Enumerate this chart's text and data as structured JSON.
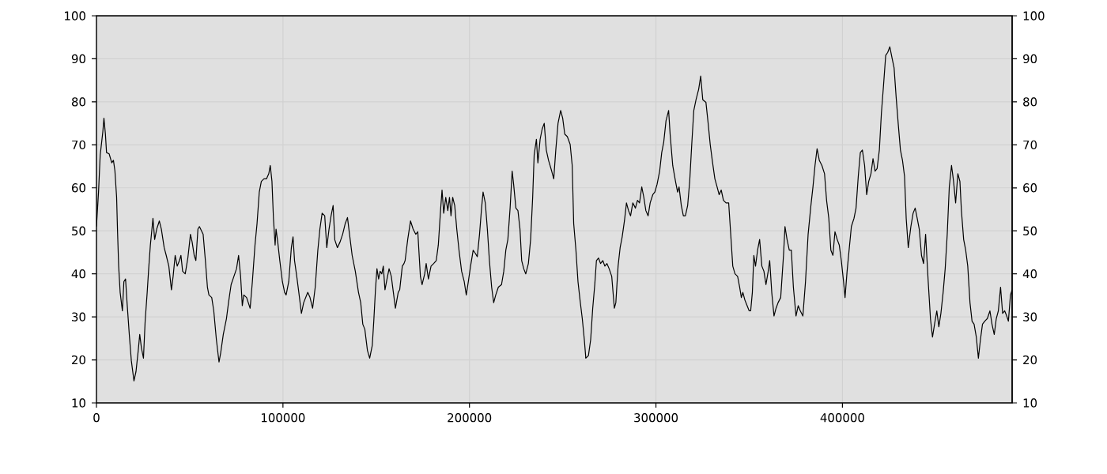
{
  "chart_data": {
    "type": "line",
    "x": [
      0,
      1100,
      2000,
      3400,
      4000,
      4800,
      5400,
      6800,
      8200,
      9100,
      9900,
      10800,
      11300,
      11900,
      12700,
      13900,
      14700,
      15600,
      16400,
      17600,
      18700,
      20100,
      21200,
      22400,
      23200,
      24100,
      25200,
      26100,
      27200,
      28000,
      28900,
      30300,
      31200,
      32300,
      33700,
      34800,
      36300,
      37400,
      38800,
      40200,
      41100,
      42200,
      43300,
      44500,
      45300,
      46200,
      47600,
      49000,
      50400,
      51300,
      52400,
      53300,
      54400,
      55200,
      57200,
      58400,
      59500,
      60300,
      61800,
      62900,
      64300,
      65700,
      66600,
      68000,
      69700,
      70800,
      72200,
      73700,
      75100,
      76200,
      77300,
      78200,
      79000,
      80500,
      82400,
      83600,
      85000,
      86100,
      87300,
      88400,
      89800,
      91200,
      92400,
      93200,
      94100,
      94900,
      95800,
      96300,
      97200,
      98300,
      99700,
      100900,
      101700,
      103100,
      104500,
      105400,
      106200,
      107400,
      108500,
      109900,
      111100,
      112200,
      113300,
      114500,
      115900,
      117300,
      118700,
      119800,
      121000,
      122400,
      123500,
      124700,
      125800,
      126900,
      127800,
      129200,
      130600,
      132000,
      133400,
      134600,
      135700,
      137100,
      138800,
      140500,
      141700,
      142800,
      143900,
      145300,
      146500,
      147900,
      148700,
      149600,
      150400,
      151300,
      152100,
      153000,
      153800,
      154700,
      155800,
      156900,
      158100,
      159200,
      160300,
      161800,
      162600,
      164000,
      164900,
      165500,
      166900,
      168400,
      169800,
      171200,
      172300,
      173700,
      174600,
      176000,
      176800,
      178000,
      179400,
      180800,
      182200,
      183300,
      184500,
      185300,
      186200,
      187300,
      188400,
      189300,
      190100,
      191000,
      192100,
      193200,
      194400,
      195800,
      197200,
      198300,
      199400,
      200600,
      202000,
      203100,
      204200,
      205400,
      206500,
      207300,
      208500,
      209600,
      210700,
      211900,
      213000,
      214100,
      215500,
      217200,
      218400,
      219500,
      220600,
      221800,
      222900,
      223700,
      224900,
      226000,
      227100,
      228000,
      229100,
      230200,
      231600,
      232800,
      233900,
      234700,
      235900,
      236700,
      237900,
      239000,
      240100,
      241200,
      242400,
      244100,
      245200,
      246300,
      247500,
      248900,
      250000,
      251100,
      252500,
      254000,
      255100,
      255900,
      257100,
      258200,
      259300,
      260500,
      261600,
      262400,
      263800,
      265000,
      266100,
      267200,
      268100,
      269200,
      270300,
      271500,
      272600,
      273700,
      274900,
      276300,
      277700,
      278500,
      279700,
      280800,
      281900,
      283100,
      284200,
      285300,
      286400,
      287600,
      289000,
      290100,
      291200,
      292400,
      293500,
      294600,
      295800,
      296900,
      298300,
      299400,
      300600,
      302000,
      303100,
      304200,
      305400,
      306800,
      307600,
      309000,
      310500,
      311600,
      312400,
      313600,
      314700,
      315800,
      317000,
      318100,
      319200,
      320300,
      321500,
      322900,
      324000,
      325100,
      326800,
      328000,
      329100,
      330200,
      331600,
      332800,
      333900,
      335000,
      336200,
      337600,
      339000,
      340100,
      341200,
      342400,
      343800,
      344900,
      345800,
      346600,
      347700,
      348900,
      350000,
      350800,
      351700,
      352500,
      353400,
      354500,
      355600,
      356800,
      357900,
      359000,
      360200,
      361000,
      362100,
      363300,
      364400,
      365500,
      366900,
      368400,
      369200,
      370300,
      371500,
      372600,
      373700,
      375100,
      376300,
      377400,
      378800,
      380200,
      381600,
      383100,
      384200,
      385300,
      386400,
      387600,
      389000,
      390400,
      391500,
      392700,
      393800,
      394900,
      396000,
      397200,
      398300,
      399400,
      400600,
      401400,
      402500,
      403700,
      404800,
      406200,
      407300,
      408500,
      409600,
      410700,
      411900,
      413000,
      414100,
      415300,
      416400,
      417500,
      418600,
      419800,
      420900,
      422000,
      423200,
      424300,
      425400,
      426600,
      427700,
      428800,
      429900,
      431100,
      432200,
      433300,
      434200,
      435300,
      436700,
      437900,
      439000,
      440100,
      441200,
      442400,
      443500,
      444600,
      446000,
      447200,
      448300,
      449400,
      450600,
      451700,
      452800,
      454000,
      455100,
      456200,
      457300,
      458500,
      459600,
      460700,
      461900,
      463000,
      463800,
      465000,
      466100,
      467200,
      468400,
      469500,
      470600,
      471800,
      472900,
      474000,
      475100,
      476300,
      477700,
      479100,
      480200,
      481400,
      482500,
      483600,
      484800,
      485900,
      487000,
      488100,
      489000,
      490100,
      491000
    ],
    "series": [
      {
        "color": "#000000",
        "values": [
          51,
          59,
          67.6,
          73,
          76.2,
          72.5,
          68.2,
          67.9,
          65.8,
          66.4,
          63.9,
          57.8,
          49.8,
          41.8,
          35.7,
          31.4,
          38.2,
          38.8,
          33.3,
          25.9,
          19.8,
          15.1,
          17.3,
          22.2,
          25.9,
          22.8,
          20.4,
          29,
          35.7,
          41.2,
          46.7,
          52.9,
          48,
          50.4,
          52.3,
          50.4,
          46.1,
          44.3,
          41.8,
          36.3,
          39.4,
          44.3,
          41.8,
          43.1,
          44.3,
          40.6,
          40,
          43.7,
          49.2,
          47.4,
          44.3,
          43.1,
          50.4,
          51,
          49.2,
          43.1,
          36.9,
          35.1,
          34.5,
          31.4,
          24.7,
          19.5,
          21.6,
          25.9,
          29.6,
          33.3,
          37.5,
          39.4,
          41.2,
          44.3,
          39.4,
          32.6,
          35.1,
          34.5,
          32,
          38.2,
          46.7,
          51.7,
          59,
          61.5,
          62.1,
          62.1,
          63.3,
          65.2,
          61.5,
          52.9,
          46.7,
          50.4,
          47.4,
          43.1,
          38.2,
          35.7,
          35.1,
          38.2,
          46.1,
          48.6,
          43.1,
          39.4,
          35.7,
          30.8,
          33.3,
          34.5,
          35.7,
          34.5,
          32,
          36.9,
          45.5,
          50.4,
          54.1,
          53.5,
          46.1,
          50.4,
          53.5,
          55.9,
          47.9,
          46.1,
          47.4,
          49.2,
          51.7,
          53.1,
          49.2,
          44.3,
          40.6,
          35.7,
          33.3,
          28.3,
          27.1,
          22.2,
          20.4,
          23.4,
          29,
          36.3,
          41.2,
          38.8,
          40.6,
          40,
          41.8,
          36.3,
          38.8,
          41.2,
          39.4,
          35.7,
          32,
          35.7,
          36.3,
          41.8,
          42.4,
          43.1,
          48,
          52.3,
          50.4,
          49.2,
          49.8,
          39.4,
          37.5,
          40,
          42.4,
          38.8,
          41.8,
          42.4,
          43.1,
          46.7,
          54.7,
          59.5,
          54.1,
          57.8,
          54.7,
          57.8,
          53.5,
          57.8,
          55.9,
          50.4,
          45.5,
          40.6,
          38.2,
          35.1,
          38.2,
          41.8,
          45.5,
          44.8,
          44,
          49.2,
          55.3,
          59,
          56.5,
          50.4,
          43.1,
          36.9,
          33.3,
          35.1,
          36.9,
          37.5,
          40.6,
          45.5,
          48,
          55.3,
          63.9,
          60.8,
          55.3,
          54.7,
          50.4,
          43.1,
          41.2,
          40,
          42.4,
          48,
          57.8,
          67.6,
          71.3,
          65.8,
          71.3,
          73.7,
          75,
          68.8,
          66.4,
          63.9,
          62.1,
          68.8,
          75,
          78,
          76.2,
          72.5,
          71.9,
          70.1,
          65.2,
          51.7,
          45.5,
          38.2,
          33.9,
          29.6,
          24.7,
          20.4,
          21,
          24.7,
          32,
          37.5,
          43.1,
          43.7,
          42.4,
          43.1,
          41.8,
          42.4,
          41.2,
          39.4,
          32,
          33.3,
          41.8,
          46.1,
          48.6,
          52.3,
          56.5,
          54.7,
          53.5,
          56.5,
          55.3,
          57.1,
          56.5,
          60.2,
          57.8,
          54.7,
          53.5,
          56.5,
          58.4,
          59,
          60.8,
          63.9,
          68.2,
          70.7,
          75.6,
          78,
          72.5,
          65.2,
          61.5,
          59,
          60.2,
          55.9,
          53.5,
          53.5,
          55.9,
          61.5,
          70.1,
          78,
          80.5,
          82.9,
          86,
          80.5,
          79.9,
          75,
          70.1,
          66.4,
          62.1,
          60.2,
          58.4,
          59.5,
          57.1,
          56.5,
          56.5,
          49.2,
          41.8,
          40,
          39.4,
          36.9,
          34.5,
          35.7,
          33.9,
          32.6,
          31.4,
          31.4,
          35.7,
          44.3,
          41.8,
          45.5,
          48,
          41.8,
          40.6,
          37.5,
          40.6,
          43.1,
          35.7,
          30.2,
          32,
          33.3,
          34.5,
          44.3,
          51,
          48,
          45.5,
          45.5,
          36.9,
          30.2,
          32.6,
          31.4,
          30.2,
          38.2,
          49.2,
          55.9,
          60.2,
          65.2,
          69.1,
          66.4,
          65.2,
          63.3,
          57.1,
          52.9,
          45.5,
          44.3,
          49.8,
          48,
          46.7,
          43.1,
          38.2,
          34.5,
          40.6,
          46.1,
          51,
          52.9,
          55.3,
          62.7,
          68.2,
          68.8,
          65.2,
          58.4,
          61.5,
          63.3,
          66.8,
          63.9,
          64.5,
          68.8,
          77.4,
          83.6,
          90.8,
          91.5,
          92.8,
          90.2,
          87.9,
          81.1,
          75,
          68.8,
          66.4,
          62.7,
          52.9,
          46.1,
          51,
          54.1,
          55.3,
          52.9,
          50.4,
          44.3,
          42.4,
          49.2,
          38.2,
          29.6,
          25.3,
          28.3,
          31.4,
          27.7,
          30.8,
          35.7,
          41.2,
          49.2,
          60.2,
          65.2,
          61.5,
          56.5,
          63.3,
          61.5,
          54.7,
          48,
          45.5,
          41.8,
          33.3,
          29,
          28.3,
          25.3,
          20.4,
          24.7,
          28.3,
          29,
          29.6,
          31.4,
          28.3,
          25.9,
          29.6,
          31.4,
          36.9,
          30.8,
          31.4,
          30.2,
          29,
          35.1,
          36.3
        ]
      }
    ],
    "xlim": [
      0,
      491000
    ],
    "xticks": [
      0,
      100000,
      200000,
      300000,
      400000
    ],
    "ylim": [
      10,
      100
    ],
    "yticks": [
      10,
      20,
      30,
      40,
      50,
      60,
      70,
      80,
      90,
      100
    ],
    "y2lim": [
      10,
      100
    ],
    "y2ticks": [
      10,
      20,
      30,
      40,
      50,
      60,
      70,
      80,
      90,
      100
    ],
    "grid": true
  }
}
